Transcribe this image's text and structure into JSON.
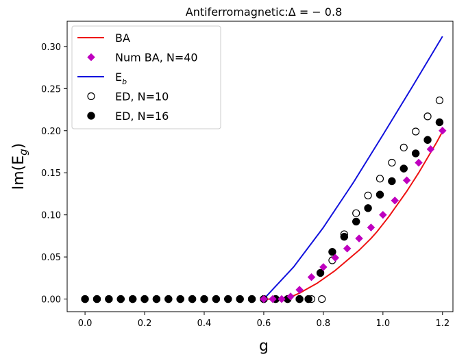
{
  "chart_data": {
    "type": "line",
    "title": "Antiferromagnetic:Δ = − 0.8",
    "xlabel": "g",
    "ylabel_main": "Im(E",
    "ylabel_sub": "g",
    "ylabel_close": ")",
    "xlim": [
      -0.06,
      1.235
    ],
    "ylim": [
      -0.015,
      0.33
    ],
    "xticks": [
      0.0,
      0.2,
      0.4,
      0.6,
      0.8,
      1.0,
      1.2
    ],
    "xtick_labels": [
      "0.0",
      "0.2",
      "0.4",
      "0.6",
      "0.8",
      "1.0",
      "1.2"
    ],
    "yticks": [
      0.0,
      0.05,
      0.1,
      0.15,
      0.2,
      0.25,
      0.3
    ],
    "ytick_labels": [
      "0.00",
      "0.05",
      "0.10",
      "0.15",
      "0.20",
      "0.25",
      "0.30"
    ],
    "grid": false,
    "legend_position": "upper-left",
    "colors": {
      "BA": "#ee1111",
      "NumBA": "#bf00bf",
      "Eb": "#1111dd",
      "ED": "#000000"
    },
    "series": [
      {
        "name": "BA",
        "kind": "line",
        "x": [
          0.6,
          0.62,
          0.64,
          0.66,
          0.68,
          0.7,
          0.72,
          0.74,
          0.76,
          0.78,
          0.8,
          0.82,
          0.84,
          0.86,
          0.88,
          0.9,
          0.92,
          0.94,
          0.96,
          0.98,
          1.0,
          1.02,
          1.04,
          1.06,
          1.08,
          1.1,
          1.12,
          1.14,
          1.16,
          1.18,
          1.2
        ],
        "y": [
          0.0,
          0.0,
          0.0,
          0.0005,
          0.002,
          0.004,
          0.007,
          0.011,
          0.015,
          0.019,
          0.024,
          0.029,
          0.034,
          0.04,
          0.046,
          0.052,
          0.058,
          0.065,
          0.072,
          0.08,
          0.089,
          0.098,
          0.108,
          0.118,
          0.128,
          0.139,
          0.15,
          0.162,
          0.174,
          0.186,
          0.199
        ]
      },
      {
        "name": "Num BA, N=40",
        "kind": "diamond",
        "x": [
          0.6,
          0.63,
          0.66,
          0.69,
          0.72,
          0.76,
          0.8,
          0.84,
          0.88,
          0.92,
          0.96,
          1.0,
          1.04,
          1.08,
          1.12,
          1.16,
          1.2
        ],
        "y": [
          0.0,
          0.0,
          0.0,
          0.003,
          0.011,
          0.026,
          0.038,
          0.049,
          0.06,
          0.072,
          0.085,
          0.1,
          0.117,
          0.141,
          0.162,
          0.178,
          0.2
        ]
      },
      {
        "name": "E_b",
        "kind": "line",
        "x": [
          0.6,
          0.7,
          0.8,
          0.9,
          1.0,
          1.1,
          1.2
        ],
        "y": [
          0.0,
          0.038,
          0.085,
          0.138,
          0.195,
          0.253,
          0.312
        ]
      },
      {
        "name": "ED, N=10",
        "kind": "open-circle",
        "x": [
          0.0,
          0.04,
          0.08,
          0.12,
          0.16,
          0.2,
          0.24,
          0.28,
          0.32,
          0.36,
          0.4,
          0.44,
          0.48,
          0.52,
          0.56,
          0.6,
          0.64,
          0.68,
          0.72,
          0.76,
          0.795,
          0.83,
          0.87,
          0.91,
          0.95,
          0.99,
          1.03,
          1.07,
          1.11,
          1.15,
          1.19
        ],
        "y": [
          0,
          0,
          0,
          0,
          0,
          0,
          0,
          0,
          0,
          0,
          0,
          0,
          0,
          0,
          0,
          0,
          0,
          0,
          0,
          0,
          0,
          0.046,
          0.077,
          0.102,
          0.123,
          0.143,
          0.162,
          0.18,
          0.199,
          0.217,
          0.236
        ]
      },
      {
        "name": "ED, N=16",
        "kind": "filled-circle",
        "x": [
          0.0,
          0.04,
          0.08,
          0.12,
          0.16,
          0.2,
          0.24,
          0.28,
          0.32,
          0.36,
          0.4,
          0.44,
          0.48,
          0.52,
          0.56,
          0.6,
          0.64,
          0.68,
          0.72,
          0.75,
          0.79,
          0.83,
          0.87,
          0.91,
          0.95,
          0.99,
          1.03,
          1.07,
          1.11,
          1.15,
          1.19
        ],
        "y": [
          0,
          0,
          0,
          0,
          0,
          0,
          0,
          0,
          0,
          0,
          0,
          0,
          0,
          0,
          0,
          0,
          0,
          0,
          0,
          0,
          0.031,
          0.056,
          0.074,
          0.092,
          0.108,
          0.124,
          0.14,
          0.155,
          0.173,
          0.189,
          0.21
        ]
      }
    ],
    "legend": [
      {
        "label": "BA",
        "sub": "",
        "kind": "line",
        "color_key": "BA"
      },
      {
        "label": "Num BA, N=40",
        "sub": "",
        "kind": "diamond",
        "color_key": "NumBA"
      },
      {
        "label": "E",
        "sub": "b",
        "kind": "line",
        "color_key": "Eb"
      },
      {
        "label": "ED, N=10",
        "sub": "",
        "kind": "open-circle",
        "color_key": "ED"
      },
      {
        "label": "ED, N=16",
        "sub": "",
        "kind": "filled-circle",
        "color_key": "ED"
      }
    ]
  }
}
